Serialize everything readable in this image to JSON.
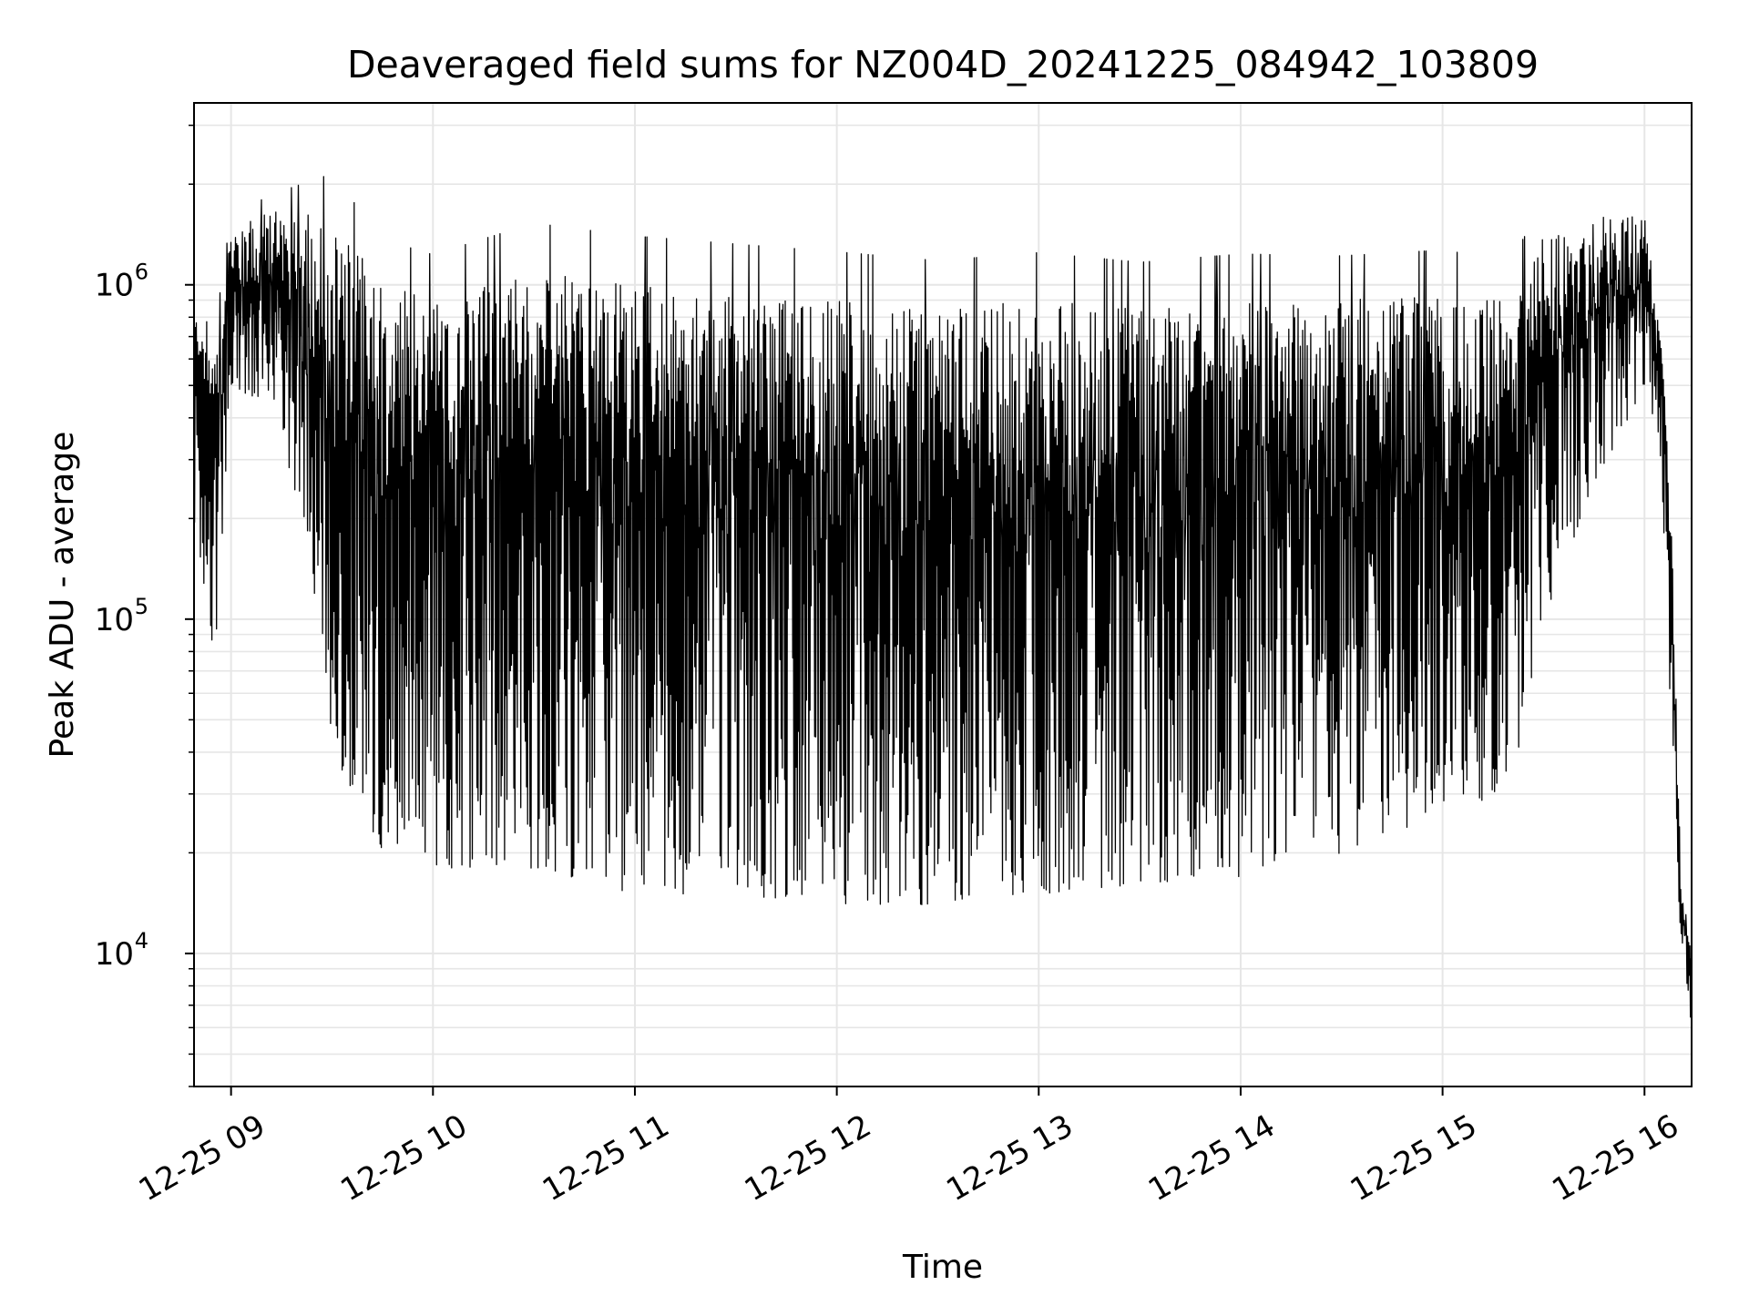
{
  "chart_data": {
    "type": "line",
    "title": "Deaveraged field sums for NZ004D_20241225_084942_103809",
    "xlabel": "Time",
    "ylabel": "Peak ADU - average",
    "yscale": "log",
    "ylim": [
      4000,
      3500000
    ],
    "xlim": [
      "2024-12-25 08:49",
      "2024-12-25 16:14"
    ],
    "grid": true,
    "line_color": "#000000",
    "grid_color": "#e6e6e6",
    "x_tick_labels": [
      "12-25 09",
      "12-25 10",
      "12-25 11",
      "12-25 12",
      "12-25 13",
      "12-25 14",
      "12-25 15",
      "12-25 16"
    ],
    "x_ticks": [
      "2024-12-25 09:00",
      "2024-12-25 10:00",
      "2024-12-25 11:00",
      "2024-12-25 12:00",
      "2024-12-25 13:00",
      "2024-12-25 14:00",
      "2024-12-25 15:00",
      "2024-12-25 16:00"
    ],
    "y_tick_labels": [
      {
        "base": "10",
        "exp": "4",
        "value": 10000
      },
      {
        "base": "10",
        "exp": "5",
        "value": 100000
      },
      {
        "base": "10",
        "exp": "6",
        "value": 1000000
      }
    ],
    "envelope": {
      "x": [
        "2024-12-25 08:49",
        "2024-12-25 08:55",
        "2024-12-25 09:00",
        "2024-12-25 09:15",
        "2024-12-25 09:30",
        "2024-12-25 09:45",
        "2024-12-25 10:00",
        "2024-12-25 10:30",
        "2024-12-25 11:00",
        "2024-12-25 11:30",
        "2024-12-25 12:00",
        "2024-12-25 12:30",
        "2024-12-25 13:00",
        "2024-12-25 13:30",
        "2024-12-25 14:00",
        "2024-12-25 14:30",
        "2024-12-25 15:00",
        "2024-12-25 15:20",
        "2024-12-25 15:30",
        "2024-12-25 15:45",
        "2024-12-25 16:00",
        "2024-12-25 16:05",
        "2024-12-25 16:08",
        "2024-12-25 16:11",
        "2024-12-25 16:14"
      ],
      "upper": [
        800000,
        600000,
        1500000,
        1700000,
        1600000,
        1000000,
        900000,
        1100000,
        1000000,
        950000,
        900000,
        850000,
        900000,
        850000,
        900000,
        900000,
        950000,
        900000,
        1400000,
        1600000,
        1600000,
        700000,
        200000,
        15000,
        10000
      ],
      "lower": [
        200000,
        70000,
        500000,
        400000,
        40000,
        20000,
        18000,
        18000,
        15000,
        15000,
        14000,
        14000,
        15000,
        16000,
        17000,
        20000,
        25000,
        30000,
        100000,
        250000,
        500000,
        300000,
        40000,
        10000,
        6000
      ]
    }
  }
}
